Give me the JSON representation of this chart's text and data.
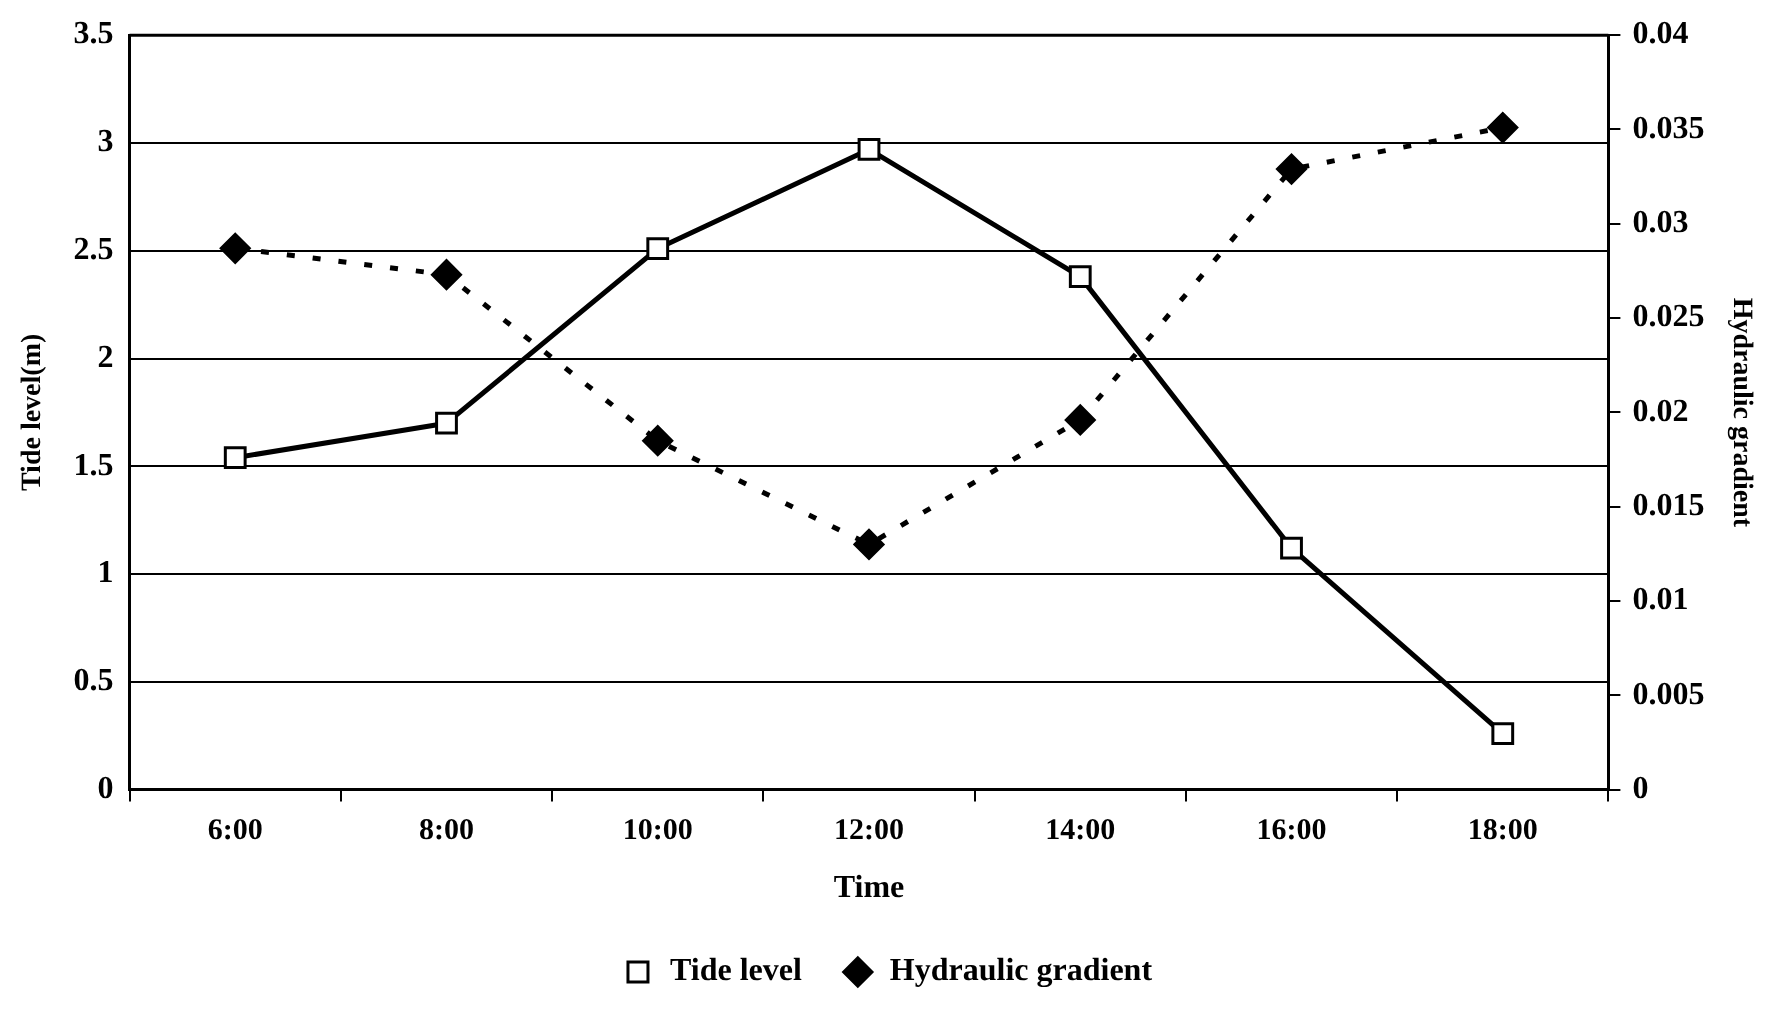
{
  "chart_data": {
    "type": "line",
    "xlabel": "Time",
    "ylabel": "Tide level(m)",
    "y2label": "Hydraulic gradient",
    "categories": [
      "6:00",
      "8:00",
      "10:00",
      "12:00",
      "14:00",
      "16:00",
      "18:00"
    ],
    "series": [
      {
        "name": "Tide level",
        "color": "#000000",
        "marker": "square",
        "line_style": "solid",
        "values": [
          1.54,
          1.7,
          2.51,
          2.97,
          2.38,
          1.12,
          0.26
        ]
      },
      {
        "name": "Hydraulic gradient",
        "color": "#000000",
        "marker": "diamond",
        "line_style": "dotted",
        "axis": "y2",
        "values": [
          0.0287,
          0.0273,
          0.0185,
          0.013,
          0.0196,
          0.0329,
          0.0351
        ]
      }
    ],
    "ylim": [
      0,
      3.5
    ],
    "yticks": [
      0,
      0.5,
      1,
      1.5,
      2,
      2.5,
      3,
      3.5
    ],
    "y2lim": [
      0,
      0.04
    ],
    "y2ticks": [
      0,
      0.005,
      0.01,
      0.015,
      0.02,
      0.025,
      0.03,
      0.035,
      0.04
    ],
    "grid": "y",
    "legend": "bottom"
  }
}
